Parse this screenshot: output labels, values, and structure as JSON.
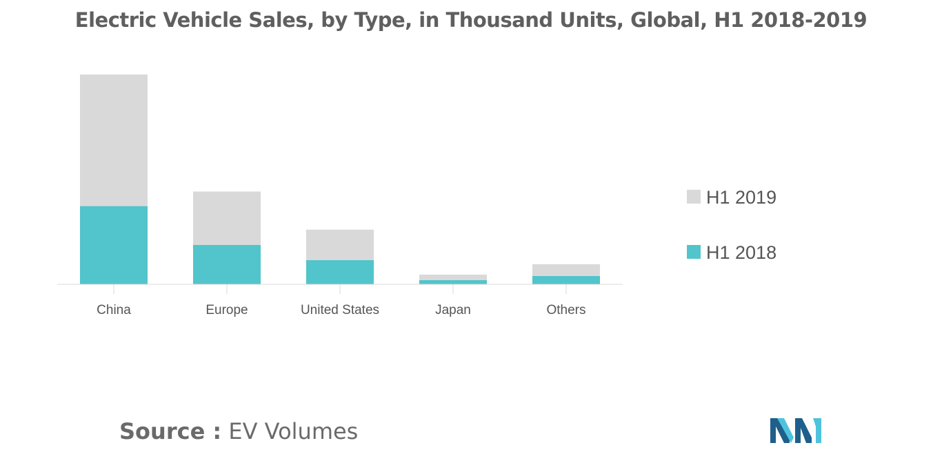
{
  "chart_data": {
    "type": "bar",
    "stacked": true,
    "title": "Electric Vehicle Sales, by Type, in Thousand Units, Global, H1 2018-2019",
    "categories": [
      "China",
      "Europe",
      "United States",
      "Japan",
      "Others"
    ],
    "series": [
      {
        "name": "H1 2018",
        "color": "#52c4cb",
        "values": [
          113,
          57,
          35,
          6,
          12
        ]
      },
      {
        "name": "H1 2019",
        "color": "#d9d9d9",
        "values": [
          190,
          77,
          44,
          8,
          17
        ]
      }
    ],
    "legend_position": "right",
    "grid": false,
    "y_axis_visible": false,
    "ylim": [
      0,
      303
    ]
  },
  "source": {
    "label": "Source :",
    "value": "EV Volumes"
  },
  "logo": {
    "icon": "mordor-intelligence-logo",
    "colors": [
      "#1f5f8b",
      "#4fc3dd"
    ]
  }
}
